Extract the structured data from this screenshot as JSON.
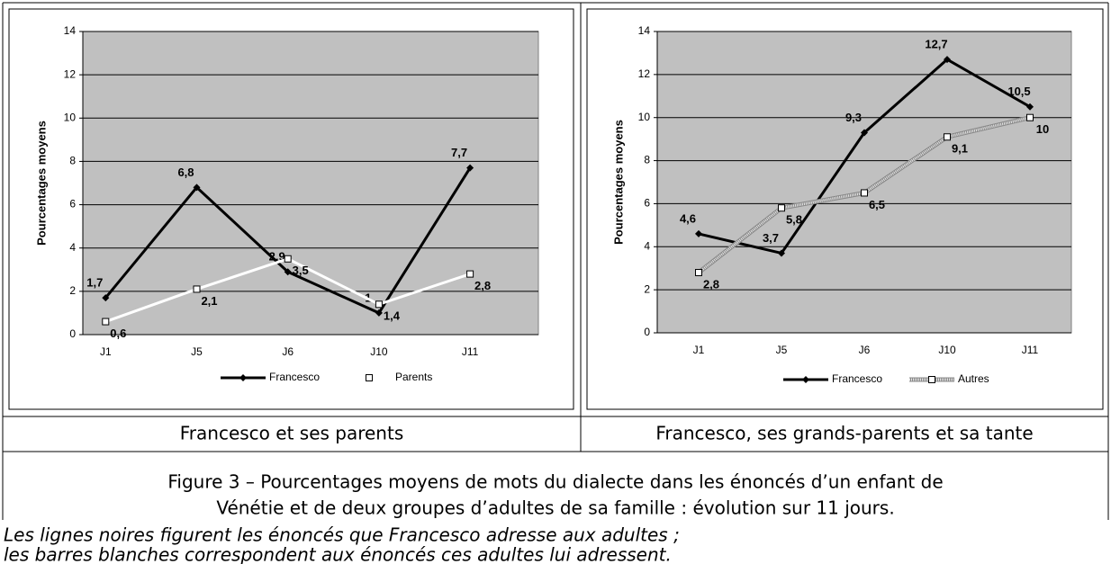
{
  "chart_data": [
    {
      "type": "line",
      "ylabel": "Pourcentages moyens",
      "categories": [
        "J1",
        "J5",
        "J6",
        "J10",
        "J11"
      ],
      "ylim": [
        0,
        14
      ],
      "yticks": [
        0,
        2,
        4,
        6,
        8,
        10,
        12,
        14
      ],
      "grid": true,
      "legend": "bottom",
      "series": [
        {
          "name": "Francesco",
          "color": "#000000",
          "marker": "diamond",
          "line_style": "solid",
          "values": [
            1.7,
            6.8,
            2.9,
            1,
            7.7
          ],
          "value_labels": [
            "1,7",
            "6,8",
            "2,9",
            "1",
            "7,7"
          ]
        },
        {
          "name": "Parents",
          "color": "#ffffff",
          "marker": "square",
          "line_style": "solid",
          "values": [
            0.6,
            2.1,
            3.5,
            1.4,
            2.8
          ],
          "value_labels": [
            "0,6",
            "2,1",
            "3,5",
            "1,4",
            "2,8"
          ]
        }
      ]
    },
    {
      "type": "line",
      "ylabel": "Pourcentages moyens",
      "categories": [
        "J1",
        "J5",
        "J6",
        "J10",
        "J11"
      ],
      "ylim": [
        0,
        14
      ],
      "yticks": [
        0,
        2,
        4,
        6,
        8,
        10,
        12,
        14
      ],
      "grid": true,
      "legend": "bottom",
      "series": [
        {
          "name": "Francesco",
          "color": "#000000",
          "marker": "diamond",
          "line_style": "solid",
          "values": [
            4.6,
            3.7,
            9.3,
            12.7,
            10.5
          ],
          "value_labels": [
            "4,6",
            "3,7",
            "9,3",
            "12,7",
            "10,5"
          ]
        },
        {
          "name": "Autres",
          "color": "#e6e6e6",
          "marker": "square",
          "line_style": "dotted",
          "values": [
            2.8,
            5.8,
            6.5,
            9.1,
            10
          ],
          "value_labels": [
            "2,8",
            "5,8",
            "6,5",
            "9,1",
            "10"
          ]
        }
      ]
    }
  ],
  "captions": [
    "Francesco et ses parents",
    "Francesco, ses grands-parents et sa tante"
  ],
  "figure_caption": [
    "Figure 3 – Pourcentages moyens de mots du dialecte dans les énoncés d’un enfant de",
    "Vénétie et de deux groupes d’adultes de sa famille : évolution sur 11 jours."
  ],
  "notes": [
    "Les lignes noires figurent les énoncés que Francesco adresse aux adultes ;",
    "les barres blanches correspondent aux énoncés ces adultes lui adressent."
  ]
}
